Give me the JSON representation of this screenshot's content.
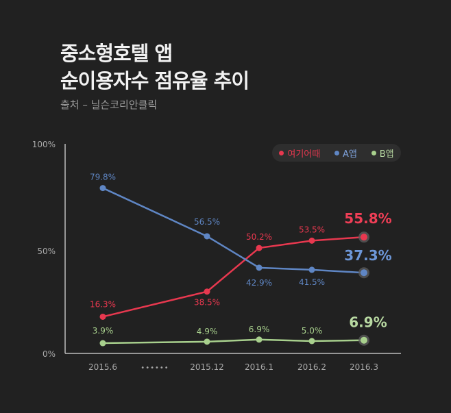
{
  "header": {
    "title_line1": "중소형호텔 앱",
    "title_line2": "순이용자수 점유율 추이",
    "source": "출처 – 닐슨코리안클릭"
  },
  "chart_data": {
    "type": "line",
    "title": "중소형호텔 앱 순이용자수 점유율 추이",
    "xlabel": "",
    "ylabel": "",
    "ylim": [
      0,
      100
    ],
    "y_ticks": [
      "100%",
      "50%",
      "0%"
    ],
    "categories": [
      "2015.6",
      "2015.12",
      "2016.1",
      "2016.2",
      "2016.3"
    ],
    "gap_marker": "••••••",
    "legend_position": "top-right",
    "series": [
      {
        "name": "여기어때",
        "color": "#e8384f",
        "values": [
          16.3,
          38.5,
          50.2,
          53.5,
          55.8
        ],
        "plot_values": [
          17.5,
          29.5,
          50.3,
          53.8,
          55.5
        ],
        "labels": [
          "16.3%",
          "38.5%",
          "50.2%",
          "53.5%",
          "55.8%"
        ]
      },
      {
        "name": "A앱",
        "color": "#5f86c4",
        "values": [
          79.8,
          56.5,
          42.9,
          41.5,
          37.3
        ],
        "plot_values": [
          78.9,
          55.9,
          40.9,
          39.9,
          38.5
        ],
        "labels": [
          "79.8%",
          "56.5%",
          "42.9%",
          "41.5%",
          "37.3%"
        ]
      },
      {
        "name": "B앱",
        "color": "#a8d08d",
        "values": [
          3.9,
          4.9,
          6.9,
          5.0,
          6.9
        ],
        "plot_values": [
          4.9,
          5.6,
          6.6,
          5.9,
          6.3
        ],
        "labels": [
          "3.9%",
          "4.9%",
          "6.9%",
          "5.0%",
          "6.9%"
        ]
      }
    ]
  }
}
